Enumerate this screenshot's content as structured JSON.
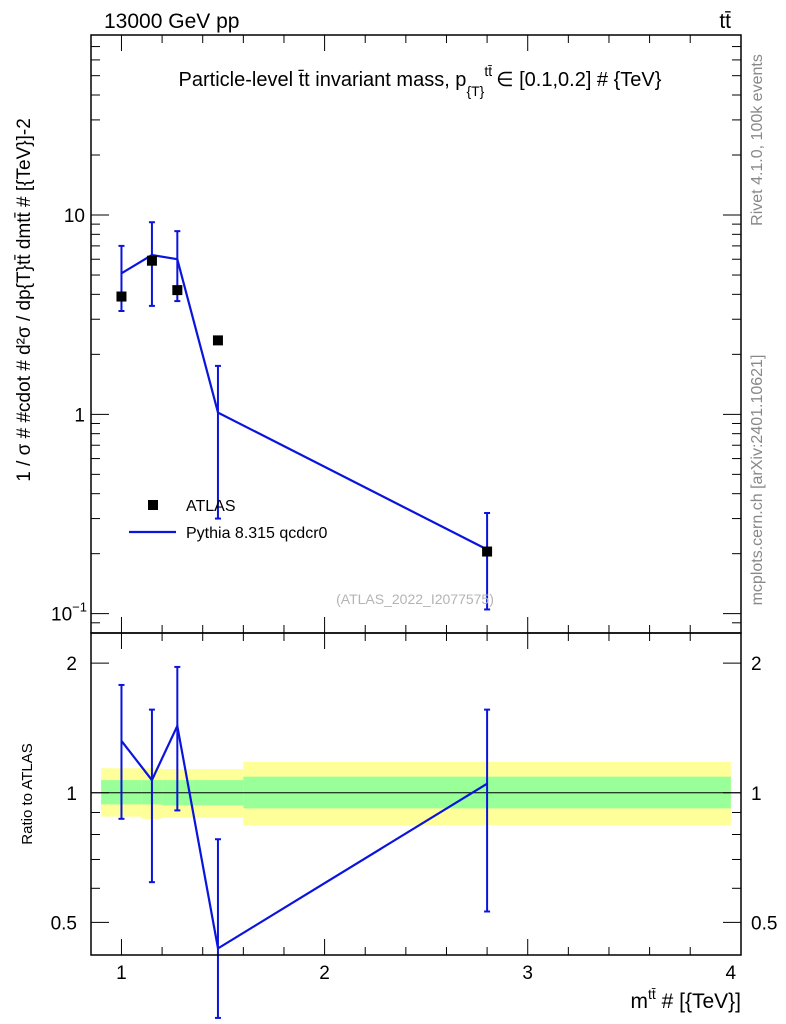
{
  "header": {
    "left": "13000 GeV pp",
    "right": "tt̄"
  },
  "side": {
    "rivet": "Rivet 4.1.0,  100k events",
    "mcplots": "mcplots.cern.ch [arXiv:2401.10621]"
  },
  "colors": {
    "data": "#000000",
    "mc": "#0a14dc",
    "band_inner": "#99ff99",
    "band_outer": "#ffff99",
    "analysis": "#b4b4b4"
  },
  "chart_data": [
    {
      "id": "main",
      "type": "line",
      "title": "Particle-level t̄t invariant mass, p",
      "title_sub": "{T}",
      "title_sup": "tt̄",
      "title_tail": "∈ [0.1,0.2] # {TeV}",
      "ylabel": "1 / σ # #cdot # d²σ / dp{T}tt̄ dmtt̄ # [{TeV}]-2",
      "yscale": "log",
      "ylim": [
        0.08,
        80
      ],
      "xlim": [
        0.85,
        4.05
      ],
      "ytick_labels": [
        {
          "value": 0.1,
          "base": "10",
          "exp": "−1"
        },
        {
          "value": 1,
          "base": "1",
          "exp": ""
        },
        {
          "value": 10,
          "base": "10",
          "exp": ""
        }
      ],
      "analysis_label": "(ATLAS_2022_I2077575)",
      "legend": [
        {
          "label": "ATLAS",
          "kind": "marker"
        },
        {
          "label": "Pythia 8.315 qcdcr0",
          "kind": "line"
        }
      ],
      "data_series": {
        "name": "ATLAS",
        "x": [
          1.0,
          1.15,
          1.275,
          1.475,
          2.8
        ],
        "y": [
          3.9,
          5.9,
          4.2,
          2.35,
          0.205
        ],
        "xlo": [
          0.9,
          1.1,
          1.2,
          1.35,
          1.6
        ],
        "xhi": [
          1.1,
          1.2,
          1.35,
          1.6,
          4.0
        ]
      },
      "mc_series": {
        "name": "Pythia 8.315 qcdcr0",
        "x": [
          1.0,
          1.15,
          1.275,
          1.475,
          2.8
        ],
        "y": [
          5.1,
          6.3,
          6.0,
          1.02,
          0.21
        ],
        "err_lo": [
          3.3,
          3.5,
          3.7,
          0.3,
          0.105
        ],
        "err_hi": [
          7.0,
          9.2,
          8.3,
          1.75,
          0.32
        ]
      }
    },
    {
      "id": "ratio",
      "type": "line",
      "ylabel": "Ratio to ATLAS",
      "xlabel": "mtt̄ # [{TeV}]",
      "xlabel_base": "m",
      "xlabel_sup": "tt̄",
      "xlabel_tail": " # [{TeV}]",
      "yscale": "log",
      "ylim": [
        0.42,
        2.35
      ],
      "xlim": [
        0.85,
        4.05
      ],
      "xticks": [
        1,
        2,
        3,
        4
      ],
      "yticks": [
        0.5,
        1,
        2
      ],
      "xtick_labels": [
        "1",
        "2",
        "3",
        "4"
      ],
      "ytick_labels": [
        "0.5",
        "1",
        "2"
      ],
      "bands": [
        {
          "xlo": 0.9,
          "xhi": 1.1,
          "inner": [
            0.94,
            1.07
          ],
          "outer": [
            0.88,
            1.14
          ]
        },
        {
          "xlo": 1.1,
          "xhi": 1.2,
          "inner": [
            0.94,
            1.07
          ],
          "outer": [
            0.87,
            1.14
          ]
        },
        {
          "xlo": 1.2,
          "xhi": 1.35,
          "inner": [
            0.935,
            1.07
          ],
          "outer": [
            0.875,
            1.135
          ]
        },
        {
          "xlo": 1.35,
          "xhi": 1.6,
          "inner": [
            0.935,
            1.07
          ],
          "outer": [
            0.875,
            1.135
          ]
        },
        {
          "xlo": 1.6,
          "xhi": 4.0,
          "inner": [
            0.92,
            1.09
          ],
          "outer": [
            0.84,
            1.18
          ]
        }
      ],
      "mc_ratio": {
        "x": [
          1.0,
          1.15,
          1.275,
          1.475,
          2.8
        ],
        "y": [
          1.32,
          1.07,
          1.43,
          0.435,
          1.05
        ],
        "err_lo": [
          0.87,
          0.62,
          0.91,
          0.3,
          0.53
        ],
        "err_hi": [
          1.78,
          1.56,
          1.96,
          0.78,
          1.56
        ]
      }
    }
  ]
}
